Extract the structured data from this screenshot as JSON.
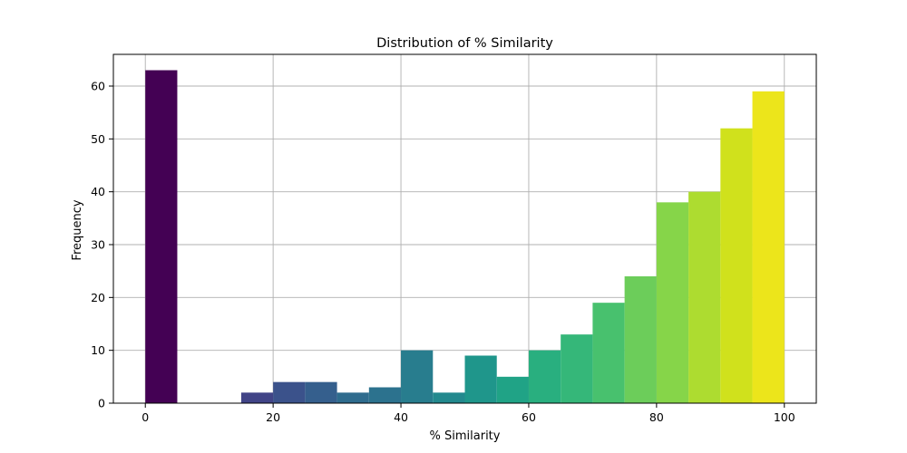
{
  "chart_data": {
    "type": "bar",
    "title": "Distribution of % Similarity",
    "xlabel": "% Similarity",
    "ylabel": "Frequency",
    "xlim": [
      -5,
      105
    ],
    "ylim": [
      0,
      66
    ],
    "grid": true,
    "x_ticks": [
      0,
      20,
      40,
      60,
      80,
      100
    ],
    "y_ticks": [
      0,
      10,
      20,
      30,
      40,
      50,
      60
    ],
    "bins": [
      {
        "x0": 0,
        "x1": 5,
        "value": 63,
        "color": "#440154"
      },
      {
        "x0": 5,
        "x1": 10,
        "value": 0,
        "color": "#481a6c"
      },
      {
        "x0": 10,
        "x1": 15,
        "value": 0,
        "color": "#472f7d"
      },
      {
        "x0": 15,
        "x1": 20,
        "value": 2,
        "color": "#414487"
      },
      {
        "x0": 20,
        "x1": 25,
        "value": 4,
        "color": "#3b528b"
      },
      {
        "x0": 25,
        "x1": 30,
        "value": 4,
        "color": "#355f8d"
      },
      {
        "x0": 30,
        "x1": 35,
        "value": 2,
        "color": "#2f6c8e"
      },
      {
        "x0": 35,
        "x1": 40,
        "value": 3,
        "color": "#2c728e"
      },
      {
        "x0": 40,
        "x1": 45,
        "value": 10,
        "color": "#287d8e"
      },
      {
        "x0": 45,
        "x1": 50,
        "value": 2,
        "color": "#23898e"
      },
      {
        "x0": 50,
        "x1": 55,
        "value": 9,
        "color": "#1f968b"
      },
      {
        "x0": 55,
        "x1": 60,
        "value": 5,
        "color": "#20a386"
      },
      {
        "x0": 60,
        "x1": 65,
        "value": 10,
        "color": "#29af7f"
      },
      {
        "x0": 65,
        "x1": 70,
        "value": 13,
        "color": "#35b779"
      },
      {
        "x0": 70,
        "x1": 75,
        "value": 19,
        "color": "#48c16e"
      },
      {
        "x0": 75,
        "x1": 80,
        "value": 24,
        "color": "#6ccd5a"
      },
      {
        "x0": 80,
        "x1": 85,
        "value": 38,
        "color": "#86d549"
      },
      {
        "x0": 85,
        "x1": 90,
        "value": 40,
        "color": "#addc30"
      },
      {
        "x0": 90,
        "x1": 95,
        "value": 52,
        "color": "#d0e11c"
      },
      {
        "x0": 95,
        "x1": 100,
        "value": 59,
        "color": "#ece51b"
      }
    ]
  }
}
